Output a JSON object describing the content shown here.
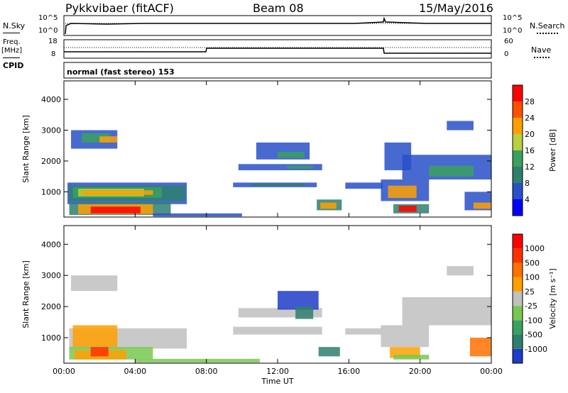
{
  "header": {
    "station": "Pykkvibaer (fitACF)",
    "beam": "Beam 08",
    "date": "15/May/2016"
  },
  "top_panels": {
    "nsky_label": "N.Sky",
    "nsearch_label": "N.Search",
    "freq_label_1": "Freq.",
    "freq_label_2": "[MHz]",
    "nave_label": "Nave",
    "cpid_label": "CPID",
    "cpid_text": "normal (fast stereo) 153",
    "noise_ticks": [
      "10^5",
      "10^0"
    ],
    "freq_ticks": [
      "18",
      "8"
    ],
    "nave_ticks": [
      "60",
      "0"
    ]
  },
  "chart_data": [
    {
      "type": "heatmap",
      "name": "power",
      "ylabel": "Slant Range [km]",
      "xlabel": "",
      "x_ticks": [
        "00:00",
        "04:00",
        "08:00",
        "12:00",
        "16:00",
        "20:00",
        "00:00"
      ],
      "x_range_hours": [
        0,
        24
      ],
      "y_ticks": [
        1000,
        2000,
        3000,
        4000
      ],
      "y_range_km": [
        180,
        4600
      ],
      "colorbar": {
        "label": "Power [dB]",
        "ticks": [
          "4",
          "8",
          "12",
          "16",
          "20",
          "24",
          "28"
        ],
        "colors": [
          "#0000ff",
          "#2850c8",
          "#2e7f6e",
          "#3aa060",
          "#b8d040",
          "#ffa000",
          "#ff5000",
          "#ff0000"
        ]
      },
      "regions": [
        {
          "t": [
            0.4,
            3.0
          ],
          "r": [
            2400,
            3000
          ],
          "color": "#2850c8"
        },
        {
          "t": [
            1.0,
            2.6
          ],
          "r": [
            2600,
            2900
          ],
          "color": "#3aa060"
        },
        {
          "t": [
            2.0,
            3.0
          ],
          "r": [
            2600,
            2800
          ],
          "color": "#ffa000"
        },
        {
          "t": [
            0.2,
            6.9
          ],
          "r": [
            600,
            1300
          ],
          "color": "#2850c8"
        },
        {
          "t": [
            0.3,
            6.8
          ],
          "r": [
            700,
            1200
          ],
          "color": "#2e7f6e"
        },
        {
          "t": [
            0.5,
            5.5
          ],
          "r": [
            800,
            1150
          ],
          "color": "#3aa060"
        },
        {
          "t": [
            0.8,
            4.5
          ],
          "r": [
            850,
            1100
          ],
          "color": "#b8d040"
        },
        {
          "t": [
            1.0,
            5.0
          ],
          "r": [
            900,
            1050
          ],
          "color": "#ffa000"
        },
        {
          "t": [
            0.3,
            6.0
          ],
          "r": [
            250,
            650
          ],
          "color": "#2e7f6e"
        },
        {
          "t": [
            0.8,
            5.0
          ],
          "r": [
            280,
            600
          ],
          "color": "#ffa000"
        },
        {
          "t": [
            1.5,
            4.3
          ],
          "r": [
            300,
            520
          ],
          "color": "#ff0000"
        },
        {
          "t": [
            5.0,
            10.0
          ],
          "r": [
            200,
            300
          ],
          "color": "#2850c8"
        },
        {
          "t": [
            9.5,
            14.2
          ],
          "r": [
            1150,
            1300
          ],
          "color": "#2850c8"
        },
        {
          "t": [
            10.5,
            13.5
          ],
          "r": [
            1180,
            1260
          ],
          "color": "#2e7f6e"
        },
        {
          "t": [
            9.8,
            14.5
          ],
          "r": [
            1700,
            1900
          ],
          "color": "#2850c8"
        },
        {
          "t": [
            12.5,
            14.0
          ],
          "r": [
            1750,
            1850
          ],
          "color": "#3aa060"
        },
        {
          "t": [
            10.8,
            13.8
          ],
          "r": [
            2050,
            2600
          ],
          "color": "#2850c8"
        },
        {
          "t": [
            12.0,
            13.5
          ],
          "r": [
            2100,
            2300
          ],
          "color": "#3aa060"
        },
        {
          "t": [
            14.2,
            15.6
          ],
          "r": [
            400,
            750
          ],
          "color": "#2e7f6e"
        },
        {
          "t": [
            14.4,
            15.3
          ],
          "r": [
            450,
            650
          ],
          "color": "#ffa000"
        },
        {
          "t": [
            15.8,
            17.9
          ],
          "r": [
            1100,
            1300
          ],
          "color": "#2850c8"
        },
        {
          "t": [
            17.8,
            20.5
          ],
          "r": [
            700,
            1400
          ],
          "color": "#2850c8"
        },
        {
          "t": [
            18.2,
            19.8
          ],
          "r": [
            800,
            1200
          ],
          "color": "#ffa000"
        },
        {
          "t": [
            18.5,
            20.5
          ],
          "r": [
            300,
            600
          ],
          "color": "#2e7f6e"
        },
        {
          "t": [
            18.8,
            19.8
          ],
          "r": [
            350,
            550
          ],
          "color": "#ff0000"
        },
        {
          "t": [
            18.0,
            19.5
          ],
          "r": [
            1700,
            2600
          ],
          "color": "#2850c8"
        },
        {
          "t": [
            19.0,
            24.0
          ],
          "r": [
            1400,
            2200
          ],
          "color": "#2850c8"
        },
        {
          "t": [
            20.5,
            23.0
          ],
          "r": [
            1500,
            1850
          ],
          "color": "#3aa060"
        },
        {
          "t": [
            21.5,
            23.0
          ],
          "r": [
            3000,
            3300
          ],
          "color": "#2850c8"
        },
        {
          "t": [
            22.5,
            24.0
          ],
          "r": [
            400,
            1000
          ],
          "color": "#2850c8"
        },
        {
          "t": [
            23.0,
            24.0
          ],
          "r": [
            450,
            650
          ],
          "color": "#ffa000"
        }
      ]
    },
    {
      "type": "heatmap",
      "name": "velocity",
      "ylabel": "Slant Range [km]",
      "xlabel": "Time UT",
      "x_ticks": [
        "00:00",
        "04:00",
        "08:00",
        "12:00",
        "16:00",
        "20:00",
        "00:00"
      ],
      "x_range_hours": [
        0,
        24
      ],
      "y_ticks": [
        1000,
        2000,
        3000,
        4000
      ],
      "y_range_km": [
        180,
        4600
      ],
      "colorbar": {
        "label": "Velocity [m s⁻¹]",
        "ticks": [
          "1000",
          "500",
          "100",
          "25",
          "-25",
          "-100",
          "-500",
          "-1000"
        ],
        "colors": [
          "#1e3cc8",
          "#2e7f6e",
          "#3aa060",
          "#78c850",
          "#c0c0c0",
          "#ffa000",
          "#ff7000",
          "#ff3000",
          "#ff0000"
        ]
      },
      "regions": [
        {
          "t": [
            0.4,
            3.0
          ],
          "r": [
            2500,
            3000
          ],
          "color": "#c0c0c0"
        },
        {
          "t": [
            0.3,
            6.9
          ],
          "r": [
            650,
            1300
          ],
          "color": "#c0c0c0"
        },
        {
          "t": [
            0.5,
            3.0
          ],
          "r": [
            700,
            1400
          ],
          "color": "#ffa000"
        },
        {
          "t": [
            0.3,
            5.0
          ],
          "r": [
            300,
            700
          ],
          "color": "#78c850"
        },
        {
          "t": [
            0.6,
            3.5
          ],
          "r": [
            300,
            600
          ],
          "color": "#ffa000"
        },
        {
          "t": [
            1.5,
            2.5
          ],
          "r": [
            400,
            700
          ],
          "color": "#ff3000"
        },
        {
          "t": [
            4.0,
            11.0
          ],
          "r": [
            200,
            320
          ],
          "color": "#78c850"
        },
        {
          "t": [
            9.5,
            14.5
          ],
          "r": [
            1100,
            1350
          ],
          "color": "#c0c0c0"
        },
        {
          "t": [
            9.8,
            14.5
          ],
          "r": [
            1650,
            1950
          ],
          "color": "#c0c0c0"
        },
        {
          "t": [
            12.0,
            14.3
          ],
          "r": [
            1900,
            2500
          ],
          "color": "#1e3cc8"
        },
        {
          "t": [
            13.0,
            14.0
          ],
          "r": [
            1600,
            2000
          ],
          "color": "#2e7f6e"
        },
        {
          "t": [
            14.3,
            15.5
          ],
          "r": [
            400,
            700
          ],
          "color": "#2e7f6e"
        },
        {
          "t": [
            15.8,
            17.8
          ],
          "r": [
            1100,
            1300
          ],
          "color": "#c0c0c0"
        },
        {
          "t": [
            17.8,
            20.5
          ],
          "r": [
            700,
            1400
          ],
          "color": "#c0c0c0"
        },
        {
          "t": [
            18.3,
            20.0
          ],
          "r": [
            350,
            700
          ],
          "color": "#ffa000"
        },
        {
          "t": [
            18.5,
            20.5
          ],
          "r": [
            300,
            450
          ],
          "color": "#78c850"
        },
        {
          "t": [
            19.0,
            24.0
          ],
          "r": [
            1400,
            2300
          ],
          "color": "#c0c0c0"
        },
        {
          "t": [
            21.5,
            23.0
          ],
          "r": [
            3000,
            3300
          ],
          "color": "#c0c0c0"
        },
        {
          "t": [
            22.8,
            24.0
          ],
          "r": [
            400,
            1000
          ],
          "color": "#ff7000"
        }
      ]
    }
  ]
}
